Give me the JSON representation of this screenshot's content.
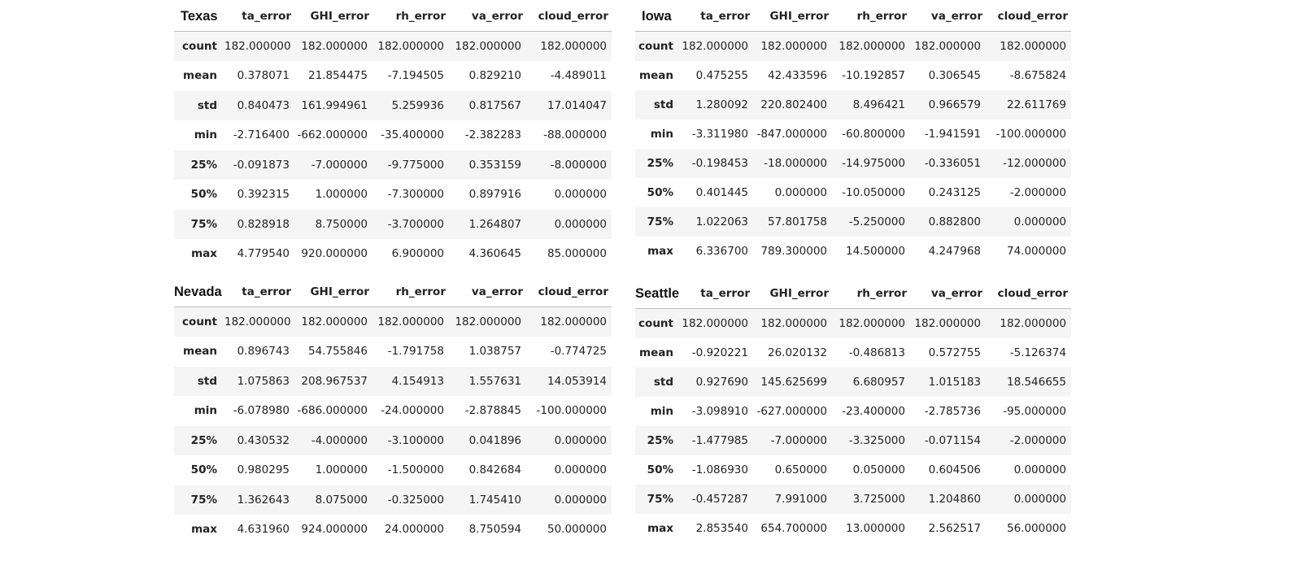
{
  "tables": [
    {
      "title": "Texas",
      "columns": [
        "ta_error",
        "GHI_error",
        "rh_error",
        "va_error",
        "cloud_error"
      ],
      "rows": [
        {
          "label": "count",
          "values": [
            "182.000000",
            "182.000000",
            "182.000000",
            "182.000000",
            "182.000000"
          ]
        },
        {
          "label": "mean",
          "values": [
            "0.378071",
            "21.854475",
            "-7.194505",
            "0.829210",
            "-4.489011"
          ]
        },
        {
          "label": "std",
          "values": [
            "0.840473",
            "161.994961",
            "5.259936",
            "0.817567",
            "17.014047"
          ]
        },
        {
          "label": "min",
          "values": [
            "-2.716400",
            "-662.000000",
            "-35.400000",
            "-2.382283",
            "-88.000000"
          ]
        },
        {
          "label": "25%",
          "values": [
            "-0.091873",
            "-7.000000",
            "-9.775000",
            "0.353159",
            "-8.000000"
          ]
        },
        {
          "label": "50%",
          "values": [
            "0.392315",
            "1.000000",
            "-7.300000",
            "0.897916",
            "0.000000"
          ]
        },
        {
          "label": "75%",
          "values": [
            "0.828918",
            "8.750000",
            "-3.700000",
            "1.264807",
            "0.000000"
          ]
        },
        {
          "label": "max",
          "values": [
            "4.779540",
            "920.000000",
            "6.900000",
            "4.360645",
            "85.000000"
          ]
        }
      ]
    },
    {
      "title": "Iowa",
      "columns": [
        "ta_error",
        "GHI_error",
        "rh_error",
        "va_error",
        "cloud_error"
      ],
      "rows": [
        {
          "label": "count",
          "values": [
            "182.000000",
            "182.000000",
            "182.000000",
            "182.000000",
            "182.000000"
          ]
        },
        {
          "label": "mean",
          "values": [
            "0.475255",
            "42.433596",
            "-10.192857",
            "0.306545",
            "-8.675824"
          ]
        },
        {
          "label": "std",
          "values": [
            "1.280092",
            "220.802400",
            "8.496421",
            "0.966579",
            "22.611769"
          ]
        },
        {
          "label": "min",
          "values": [
            "-3.311980",
            "-847.000000",
            "-60.800000",
            "-1.941591",
            "-100.000000"
          ]
        },
        {
          "label": "25%",
          "values": [
            "-0.198453",
            "-18.000000",
            "-14.975000",
            "-0.336051",
            "-12.000000"
          ]
        },
        {
          "label": "50%",
          "values": [
            "0.401445",
            "0.000000",
            "-10.050000",
            "0.243125",
            "-2.000000"
          ]
        },
        {
          "label": "75%",
          "values": [
            "1.022063",
            "57.801758",
            "-5.250000",
            "0.882800",
            "0.000000"
          ]
        },
        {
          "label": "max",
          "values": [
            "6.336700",
            "789.300000",
            "14.500000",
            "4.247968",
            "74.000000"
          ]
        }
      ]
    },
    {
      "title": "Nevada",
      "columns": [
        "ta_error",
        "GHI_error",
        "rh_error",
        "va_error",
        "cloud_error"
      ],
      "rows": [
        {
          "label": "count",
          "values": [
            "182.000000",
            "182.000000",
            "182.000000",
            "182.000000",
            "182.000000"
          ]
        },
        {
          "label": "mean",
          "values": [
            "0.896743",
            "54.755846",
            "-1.791758",
            "1.038757",
            "-0.774725"
          ]
        },
        {
          "label": "std",
          "values": [
            "1.075863",
            "208.967537",
            "4.154913",
            "1.557631",
            "14.053914"
          ]
        },
        {
          "label": "min",
          "values": [
            "-6.078980",
            "-686.000000",
            "-24.000000",
            "-2.878845",
            "-100.000000"
          ]
        },
        {
          "label": "25%",
          "values": [
            "0.430532",
            "-4.000000",
            "-3.100000",
            "0.041896",
            "0.000000"
          ]
        },
        {
          "label": "50%",
          "values": [
            "0.980295",
            "1.000000",
            "-1.500000",
            "0.842684",
            "0.000000"
          ]
        },
        {
          "label": "75%",
          "values": [
            "1.362643",
            "8.075000",
            "-0.325000",
            "1.745410",
            "0.000000"
          ]
        },
        {
          "label": "max",
          "values": [
            "4.631960",
            "924.000000",
            "24.000000",
            "8.750594",
            "50.000000"
          ]
        }
      ]
    },
    {
      "title": "Seattle",
      "columns": [
        "ta_error",
        "GHI_error",
        "rh_error",
        "va_error",
        "cloud_error"
      ],
      "rows": [
        {
          "label": "count",
          "values": [
            "182.000000",
            "182.000000",
            "182.000000",
            "182.000000",
            "182.000000"
          ]
        },
        {
          "label": "mean",
          "values": [
            "-0.920221",
            "26.020132",
            "-0.486813",
            "0.572755",
            "-5.126374"
          ]
        },
        {
          "label": "std",
          "values": [
            "0.927690",
            "145.625699",
            "6.680957",
            "1.015183",
            "18.546655"
          ]
        },
        {
          "label": "min",
          "values": [
            "-3.098910",
            "-627.000000",
            "-23.400000",
            "-2.785736",
            "-95.000000"
          ]
        },
        {
          "label": "25%",
          "values": [
            "-1.477985",
            "-7.000000",
            "-3.325000",
            "-0.071154",
            "-2.000000"
          ]
        },
        {
          "label": "50%",
          "values": [
            "-1.086930",
            "0.650000",
            "0.050000",
            "0.604506",
            "0.000000"
          ]
        },
        {
          "label": "75%",
          "values": [
            "-0.457287",
            "7.991000",
            "3.725000",
            "1.204860",
            "0.000000"
          ]
        },
        {
          "label": "max",
          "values": [
            "2.853540",
            "654.700000",
            "13.000000",
            "2.562517",
            "56.000000"
          ]
        }
      ]
    }
  ]
}
